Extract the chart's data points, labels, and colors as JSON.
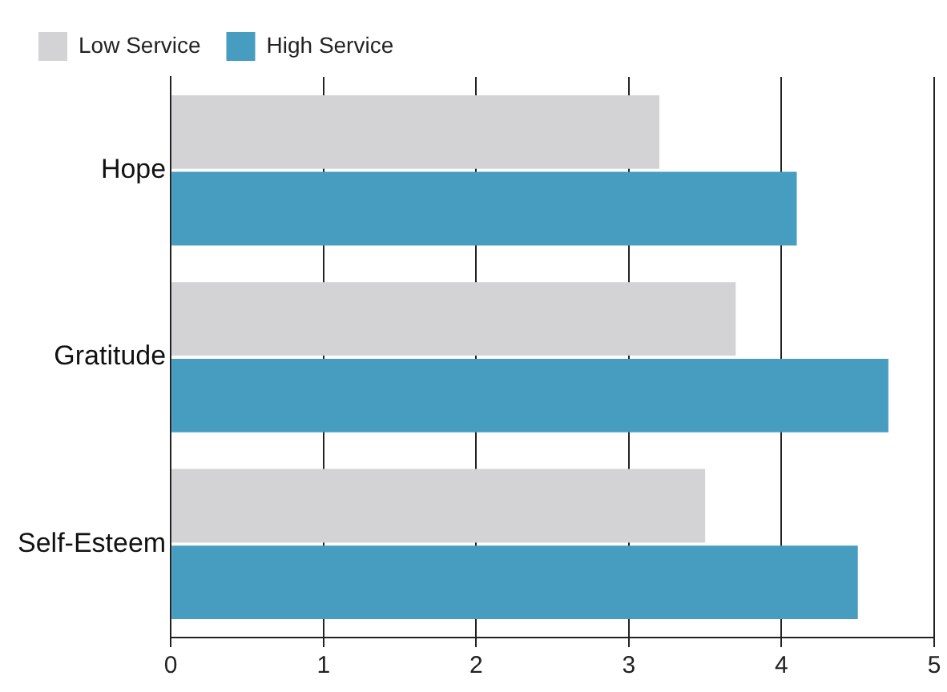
{
  "chart_data": {
    "type": "bar",
    "orientation": "horizontal",
    "categories": [
      "Hope",
      "Gratitude",
      "Self-Esteem"
    ],
    "series": [
      {
        "name": "Low Service",
        "color": "#d3d3d5",
        "values": [
          3.2,
          3.7,
          3.5
        ]
      },
      {
        "name": "High Service",
        "color": "#469dc0",
        "values": [
          4.1,
          4.7,
          4.5
        ]
      }
    ],
    "xlim": [
      0,
      5
    ],
    "xticks": [
      0,
      1,
      2,
      3,
      4,
      5
    ],
    "grid": "x",
    "legend": "top left"
  }
}
